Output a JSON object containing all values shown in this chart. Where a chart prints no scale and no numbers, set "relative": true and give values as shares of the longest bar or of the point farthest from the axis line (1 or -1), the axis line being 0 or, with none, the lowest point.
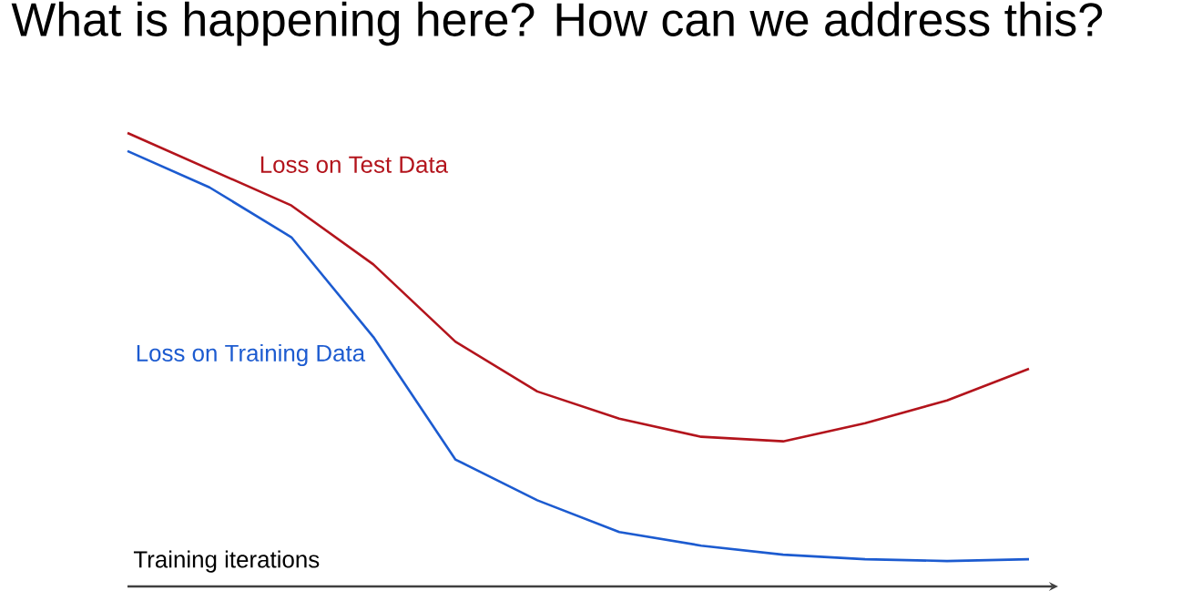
{
  "chart_data": {
    "type": "line",
    "title": "What is happening here? How can we address this?",
    "xlabel": "Training iterations",
    "relative": true,
    "categories": [
      null,
      null,
      null,
      null,
      null,
      null,
      null,
      null,
      null,
      null,
      null,
      null
    ],
    "series": [
      {
        "name": "Loss on Test Data",
        "color": "#b3141c",
        "values": [
          1.0,
          0.92,
          0.84,
          0.71,
          0.54,
          0.43,
          0.37,
          0.33,
          0.32,
          0.36,
          0.41,
          0.48
        ]
      },
      {
        "name": "Loss on Training Data",
        "color": "#1c5bd0",
        "values": [
          0.96,
          0.88,
          0.77,
          0.55,
          0.28,
          0.19,
          0.12,
          0.09,
          0.07,
          0.06,
          0.056,
          0.06
        ]
      }
    ]
  }
}
